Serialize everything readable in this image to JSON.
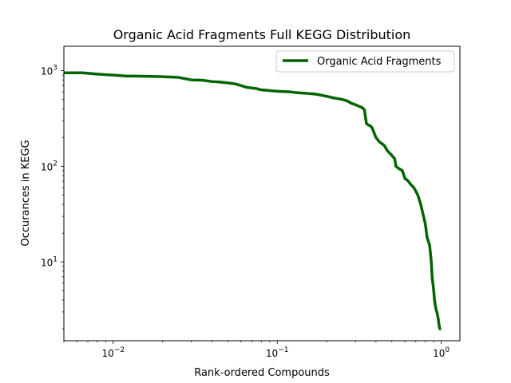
{
  "chart_data": {
    "type": "line",
    "title": "Organic Acid Fragments Full KEGG Distribution",
    "xlabel": "Rank-ordered Compounds",
    "ylabel": "Occurances in KEGG",
    "xscale": "log",
    "yscale": "log",
    "xlim": [
      0.005,
      1.3
    ],
    "ylim": [
      1.5,
      1800
    ],
    "xticks": [
      {
        "value": 0.01,
        "base": "10",
        "exp": "−2"
      },
      {
        "value": 0.1,
        "base": "10",
        "exp": "−1"
      },
      {
        "value": 1,
        "base": "10",
        "exp": "0"
      }
    ],
    "yticks": [
      {
        "value": 10,
        "base": "10",
        "exp": "1"
      },
      {
        "value": 100,
        "base": "10",
        "exp": "2"
      },
      {
        "value": 1000,
        "base": "10",
        "exp": "3"
      }
    ],
    "grid": false,
    "legend": {
      "placement": "top-right"
    },
    "series": [
      {
        "name": "Organic Acid Fragments",
        "color": "#006400",
        "x": [
          0.005,
          0.0065,
          0.008,
          0.01,
          0.012,
          0.015,
          0.02,
          0.025,
          0.028,
          0.03,
          0.035,
          0.04,
          0.045,
          0.05,
          0.055,
          0.06,
          0.065,
          0.07,
          0.075,
          0.08,
          0.085,
          0.09,
          0.1,
          0.11,
          0.12,
          0.13,
          0.15,
          0.17,
          0.18,
          0.2,
          0.22,
          0.25,
          0.27,
          0.28,
          0.3,
          0.32,
          0.33,
          0.34,
          0.35,
          0.36,
          0.37,
          0.38,
          0.4,
          0.42,
          0.43,
          0.45,
          0.47,
          0.5,
          0.52,
          0.53,
          0.55,
          0.58,
          0.6,
          0.63,
          0.65,
          0.68,
          0.7,
          0.72,
          0.75,
          0.78,
          0.8,
          0.82,
          0.85,
          0.87,
          0.88,
          0.9,
          0.91,
          0.92,
          0.93,
          0.94,
          0.95,
          0.96,
          0.97,
          0.98,
          0.99,
          1.0
        ],
        "y": [
          950,
          950,
          920,
          900,
          880,
          875,
          865,
          850,
          820,
          800,
          795,
          770,
          760,
          745,
          730,
          700,
          670,
          660,
          650,
          630,
          625,
          620,
          610,
          605,
          600,
          590,
          580,
          570,
          560,
          540,
          520,
          500,
          480,
          460,
          440,
          420,
          410,
          390,
          280,
          270,
          265,
          250,
          200,
          180,
          175,
          165,
          145,
          130,
          120,
          100,
          95,
          90,
          75,
          70,
          65,
          60,
          55,
          50,
          40,
          30,
          25,
          18,
          15,
          10,
          7,
          5,
          4,
          3.5,
          3.2,
          3,
          2.8,
          2.5,
          2.2,
          2,
          2,
          2
        ]
      }
    ]
  }
}
